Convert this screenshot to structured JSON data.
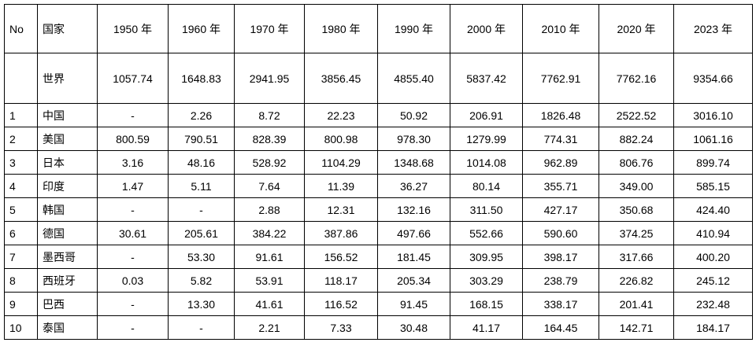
{
  "table": {
    "header": [
      "No",
      "国家",
      "1950 年",
      "1960 年",
      "1970 年",
      "1980 年",
      "1990 年",
      "2000 年",
      "2010 年",
      "2020 年",
      "2023 年"
    ],
    "rows": [
      {
        "name": "世界",
        "values": [
          "1057.74",
          "1648.83",
          "2941.95",
          "3856.45",
          "4855.40",
          "5837.42",
          "7762.91",
          "7762.16",
          "9354.66"
        ]
      },
      {
        "no": "1",
        "name": "中国",
        "values": [
          "-",
          "2.26",
          "8.72",
          "22.23",
          "50.92",
          "206.91",
          "1826.48",
          "2522.52",
          "3016.10"
        ]
      },
      {
        "no": "2",
        "name": "美国",
        "values": [
          "800.59",
          "790.51",
          "828.39",
          "800.98",
          "978.30",
          "1279.99",
          "774.31",
          "882.24",
          "1061.16"
        ]
      },
      {
        "no": "3",
        "name": "日本",
        "values": [
          "3.16",
          "48.16",
          "528.92",
          "1104.29",
          "1348.68",
          "1014.08",
          "962.89",
          "806.76",
          "899.74"
        ]
      },
      {
        "no": "4",
        "name": "印度",
        "values": [
          "1.47",
          "5.11",
          "7.64",
          "11.39",
          "36.27",
          "80.14",
          "355.71",
          "349.00",
          "585.15"
        ]
      },
      {
        "no": "5",
        "name": "韩国",
        "values": [
          "-",
          "-",
          "2.88",
          "12.31",
          "132.16",
          "311.50",
          "427.17",
          "350.68",
          "424.40"
        ]
      },
      {
        "no": "6",
        "name": "德国",
        "values": [
          "30.61",
          "205.61",
          "384.22",
          "387.86",
          "497.66",
          "552.66",
          "590.60",
          "374.25",
          "410.94"
        ]
      },
      {
        "no": "7",
        "name": "墨西哥",
        "values": [
          "-",
          "53.30",
          "91.61",
          "156.52",
          "181.45",
          "309.95",
          "398.17",
          "317.66",
          "400.20"
        ]
      },
      {
        "no": "8",
        "name": "西班牙",
        "values": [
          "0.03",
          "5.82",
          "53.91",
          "118.17",
          "205.34",
          "303.29",
          "238.79",
          "226.82",
          "245.12"
        ]
      },
      {
        "no": "9",
        "name": "巴西",
        "values": [
          "-",
          "13.30",
          "41.61",
          "116.52",
          "91.45",
          "168.15",
          "338.17",
          "201.41",
          "232.48"
        ]
      },
      {
        "no": "10",
        "name": "泰国",
        "values": [
          "-",
          "-",
          "2.21",
          "7.33",
          "30.48",
          "41.17",
          "164.45",
          "142.71",
          "184.17"
        ]
      }
    ]
  }
}
